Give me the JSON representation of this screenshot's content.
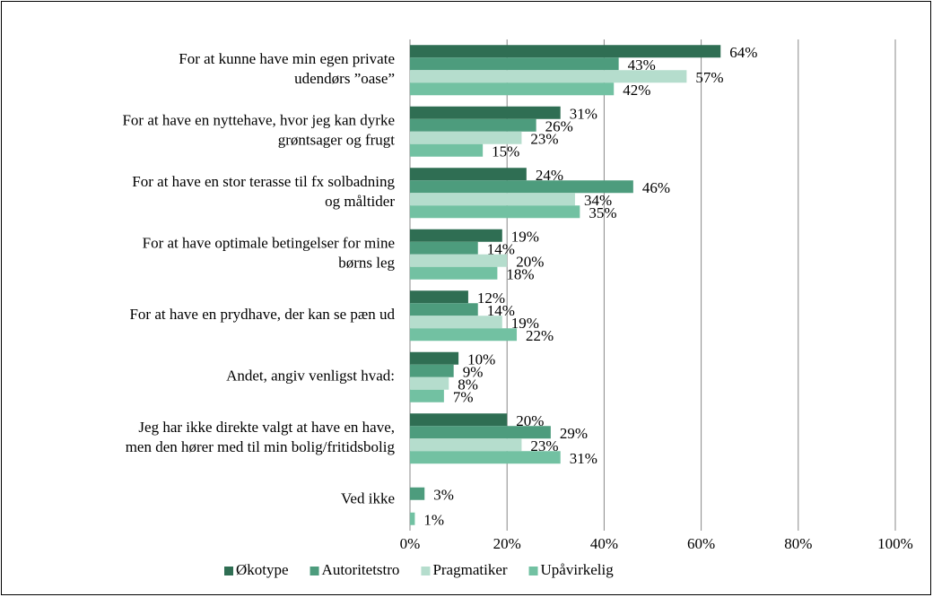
{
  "chart_data": {
    "type": "bar",
    "orientation": "horizontal",
    "categories": [
      [
        "For at kunne have min egen private",
        "udendørs ”oase”"
      ],
      [
        "For at have en nyttehave, hvor jeg kan dyrke",
        "grøntsager og frugt"
      ],
      [
        "For at have en stor terasse til fx solbadning",
        "og måltider"
      ],
      [
        "For at have optimale betingelser for mine",
        "børns leg"
      ],
      [
        "For at have en prydhave, der kan se pæn ud"
      ],
      [
        "Andet, angiv venligst hvad:"
      ],
      [
        "Jeg har ikke direkte valgt at have en have,",
        "men den hører med til min bolig/fritidsbolig"
      ],
      [
        "Ved ikke"
      ]
    ],
    "series": [
      {
        "name": "Økotype",
        "color": "#2f6e53",
        "values": [
          64,
          31,
          24,
          19,
          12,
          10,
          20,
          null
        ],
        "value_labels": [
          "64%",
          "31%",
          "24%",
          "19%",
          "12%",
          "10%",
          "20%",
          null
        ]
      },
      {
        "name": "Autoritetstro",
        "color": "#4d9c7d",
        "values": [
          43,
          26,
          46,
          14,
          14,
          9,
          29,
          3
        ],
        "value_labels": [
          "43%",
          "26%",
          "46%",
          "14%",
          "14%",
          "9%",
          "29%",
          "3%"
        ]
      },
      {
        "name": "Pragmatiker",
        "color": "#b5ddcd",
        "values": [
          57,
          23,
          34,
          20,
          19,
          8,
          23,
          null
        ],
        "value_labels": [
          "57%",
          "23%",
          "34%",
          "20%",
          "19%",
          "8%",
          "23%",
          null
        ]
      },
      {
        "name": "Upåvirkelig",
        "color": "#72c1a2",
        "values": [
          42,
          15,
          35,
          18,
          22,
          7,
          31,
          1
        ],
        "value_labels": [
          "42%",
          "15%",
          "35%",
          "18%",
          "22%",
          "7%",
          "31%",
          "1%"
        ]
      }
    ],
    "xlim": [
      0,
      100
    ],
    "xticks": [
      {
        "value": 0,
        "label": "0%"
      },
      {
        "value": 20,
        "label": "20%"
      },
      {
        "value": 40,
        "label": "40%"
      },
      {
        "value": 60,
        "label": "60%"
      },
      {
        "value": 80,
        "label": "80%"
      },
      {
        "value": 100,
        "label": "100%"
      }
    ],
    "grid": true,
    "legend": "bottom"
  }
}
